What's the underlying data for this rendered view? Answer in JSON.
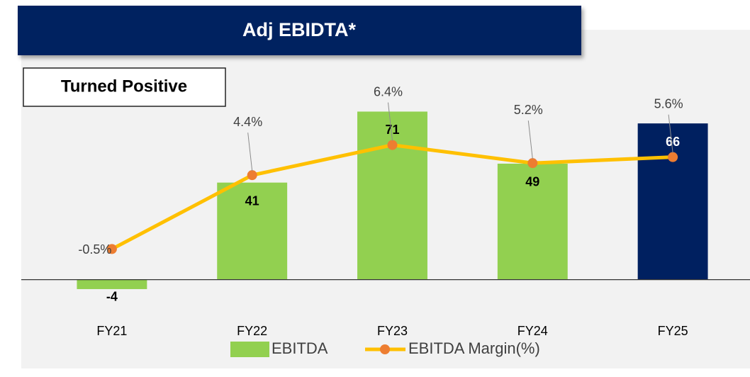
{
  "chart_data": {
    "type": "bar-line",
    "title": "Adj EBIDTA*",
    "annotation": "Turned Positive",
    "categories": [
      "FY21",
      "FY22",
      "FY23",
      "FY24",
      "FY25"
    ],
    "series": [
      {
        "name": "EBITDA",
        "type": "bar",
        "color": "#92d050",
        "colors": [
          "#92d050",
          "#92d050",
          "#92d050",
          "#92d050",
          "#002060"
        ],
        "values": [
          -4,
          41,
          71,
          49,
          66
        ]
      },
      {
        "name": "EBITDA Margin(%)",
        "type": "line",
        "axis": "y2",
        "color": "#ffc000",
        "marker_color": "#ed7d31",
        "values": [
          -0.5,
          4.4,
          6.4,
          5.2,
          5.6
        ],
        "value_labels": [
          "-0.5%",
          "4.4%",
          "6.4%",
          "5.2%",
          "5.6%"
        ]
      }
    ],
    "ylim": [
      -10,
      90
    ],
    "y2lim": [
      -4.1,
      11.6
    ],
    "legend": "bottom"
  }
}
